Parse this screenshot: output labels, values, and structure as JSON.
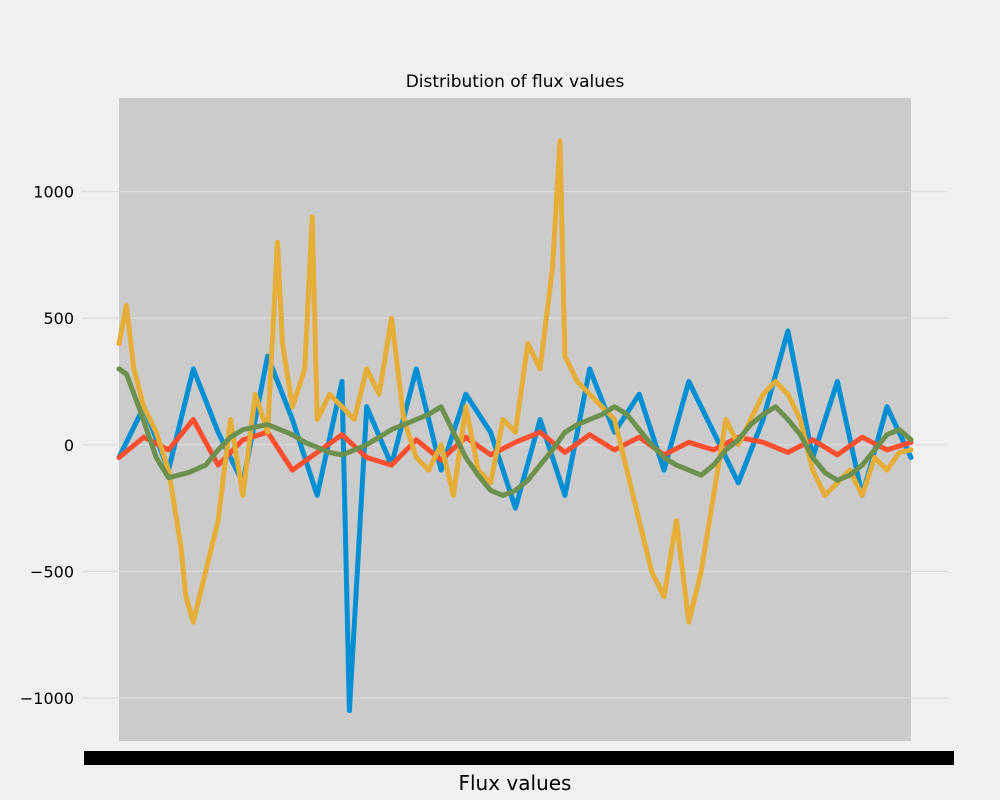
{
  "chart_data": {
    "type": "line",
    "title": "Distribution of flux values",
    "xlabel": "Flux values",
    "ylabel": "",
    "xlim": [
      0,
      3197
    ],
    "ylim": [
      -1170,
      1370
    ],
    "yticks": [
      1000,
      500,
      0,
      -500,
      -1000
    ],
    "ytick_labels": [
      "1000",
      "500",
      "0",
      "−500",
      "−1000"
    ],
    "grid": true,
    "legend": "none",
    "colors": {
      "figure_background": "#f0f0f0",
      "plot_background": "#cbcbcb",
      "grid": "#dcdcdc"
    },
    "series": [
      {
        "color": "#008fd5",
        "x": [
          0,
          100,
          200,
          300,
          400,
          500,
          600,
          700,
          800,
          900,
          930,
          1000,
          1100,
          1200,
          1300,
          1400,
          1500,
          1600,
          1700,
          1800,
          1900,
          2000,
          2100,
          2200,
          2300,
          2400,
          2500,
          2600,
          2700,
          2800,
          2900,
          3000,
          3100,
          3197
        ],
        "values": [
          -50,
          150,
          -100,
          300,
          50,
          -150,
          350,
          100,
          -200,
          250,
          -1050,
          150,
          -80,
          300,
          -100,
          200,
          50,
          -250,
          100,
          -200,
          300,
          50,
          200,
          -100,
          250,
          50,
          -150,
          100,
          450,
          -50,
          250,
          -200,
          150,
          -50
        ]
      },
      {
        "color": "#fc4f30",
        "x": [
          0,
          100,
          200,
          300,
          400,
          500,
          600,
          700,
          800,
          900,
          1000,
          1100,
          1200,
          1300,
          1400,
          1500,
          1600,
          1700,
          1800,
          1900,
          2000,
          2100,
          2200,
          2300,
          2400,
          2500,
          2600,
          2700,
          2800,
          2900,
          3000,
          3100,
          3197
        ],
        "values": [
          -50,
          30,
          -20,
          100,
          -80,
          20,
          50,
          -100,
          -30,
          40,
          -50,
          -80,
          20,
          -60,
          30,
          -40,
          10,
          50,
          -30,
          40,
          -20,
          30,
          -40,
          10,
          -20,
          30,
          10,
          -30,
          20,
          -40,
          30,
          -20,
          10
        ]
      },
      {
        "color": "#e5ae38",
        "x": [
          0,
          30,
          60,
          100,
          150,
          200,
          250,
          270,
          300,
          350,
          400,
          450,
          500,
          550,
          600,
          640,
          660,
          700,
          750,
          780,
          800,
          850,
          900,
          950,
          1000,
          1050,
          1100,
          1150,
          1200,
          1250,
          1300,
          1350,
          1400,
          1450,
          1500,
          1550,
          1600,
          1650,
          1700,
          1750,
          1780,
          1800,
          1850,
          1900,
          1950,
          2000,
          2050,
          2100,
          2150,
          2200,
          2250,
          2300,
          2350,
          2400,
          2450,
          2500,
          2550,
          2600,
          2650,
          2700,
          2750,
          2800,
          2850,
          2900,
          2950,
          3000,
          3050,
          3100,
          3150,
          3197
        ],
        "values": [
          400,
          550,
          300,
          150,
          50,
          -100,
          -400,
          -600,
          -700,
          -500,
          -300,
          100,
          -200,
          200,
          50,
          800,
          400,
          150,
          300,
          900,
          100,
          200,
          150,
          100,
          300,
          200,
          500,
          100,
          -50,
          -100,
          0,
          -200,
          150,
          -100,
          -150,
          100,
          50,
          400,
          300,
          700,
          1200,
          350,
          250,
          200,
          150,
          100,
          -100,
          -300,
          -500,
          -600,
          -300,
          -700,
          -500,
          -200,
          100,
          0,
          100,
          200,
          250,
          200,
          100,
          -100,
          -200,
          -150,
          -100,
          -200,
          -50,
          -100,
          -30,
          -20
        ]
      },
      {
        "color": "#6d904f",
        "x": [
          0,
          30,
          80,
          150,
          200,
          280,
          350,
          400,
          450,
          500,
          550,
          600,
          650,
          700,
          750,
          800,
          850,
          900,
          950,
          1000,
          1050,
          1100,
          1150,
          1200,
          1250,
          1300,
          1350,
          1400,
          1450,
          1500,
          1550,
          1600,
          1650,
          1700,
          1750,
          1800,
          1850,
          1900,
          1950,
          2000,
          2050,
          2100,
          2150,
          2200,
          2250,
          2300,
          2350,
          2400,
          2450,
          2500,
          2550,
          2600,
          2650,
          2700,
          2750,
          2800,
          2850,
          2900,
          2950,
          3000,
          3050,
          3100,
          3150,
          3197
        ],
        "values": [
          300,
          280,
          150,
          -50,
          -130,
          -110,
          -80,
          -20,
          30,
          60,
          70,
          80,
          60,
          40,
          10,
          -10,
          -30,
          -40,
          -20,
          0,
          30,
          60,
          80,
          100,
          120,
          150,
          50,
          -50,
          -120,
          -180,
          -200,
          -180,
          -140,
          -80,
          -20,
          50,
          80,
          100,
          120,
          150,
          120,
          60,
          0,
          -50,
          -80,
          -100,
          -120,
          -80,
          -20,
          20,
          80,
          120,
          150,
          100,
          40,
          -50,
          -110,
          -140,
          -120,
          -80,
          -20,
          40,
          60,
          20
        ]
      }
    ]
  }
}
